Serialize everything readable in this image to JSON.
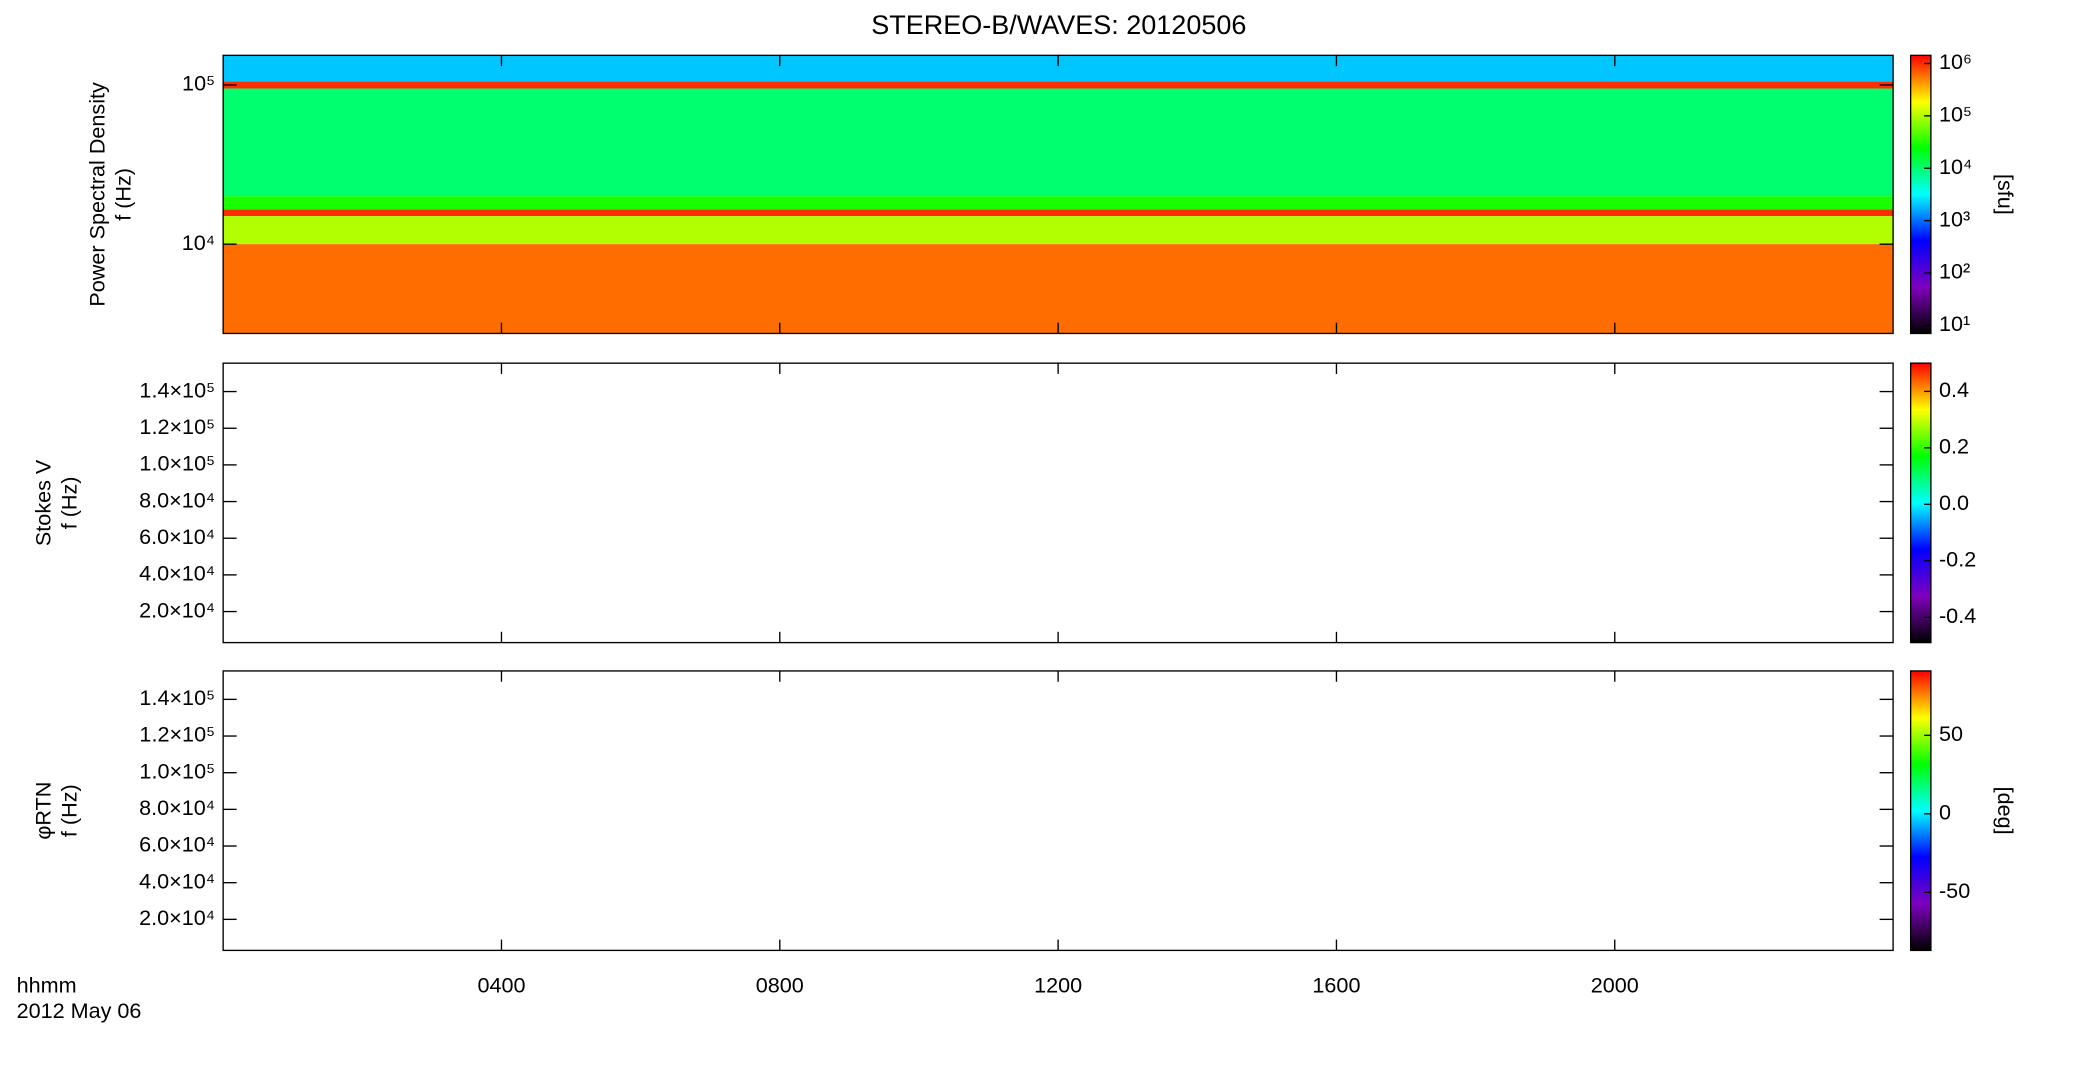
{
  "title": "STEREO-B/WAVES: 20120506",
  "x_axis": {
    "label": "hhmm",
    "date": "2012 May 06",
    "xlim": [
      0,
      24
    ],
    "xticks": [
      {
        "value": 4,
        "label": "0400"
      },
      {
        "value": 8,
        "label": "0800"
      },
      {
        "value": 12,
        "label": "1200"
      },
      {
        "value": 16,
        "label": "1600"
      },
      {
        "value": 20,
        "label": "2000"
      }
    ]
  },
  "colormap": [
    "#000000",
    "#7f00bf",
    "#0000ff",
    "#00ffff",
    "#00ff00",
    "#ffff00",
    "#ff0000"
  ],
  "chart_data": [
    {
      "type": "spectrogram",
      "ylabel": [
        "Power Spectral Density",
        "f (Hz)"
      ],
      "log_y": true,
      "ylim": [
        2750,
        153500
      ],
      "yticks": [
        {
          "value": 10000,
          "label": "10⁴"
        },
        {
          "value": 100000,
          "label": "10⁵"
        }
      ],
      "bands": {
        "f_low": [
          105000,
          95000,
          20000,
          16500,
          15000,
          10000,
          2750
        ],
        "f_high": [
          153500,
          105000,
          95000,
          20000,
          16500,
          15000,
          10000
        ],
        "values": [
          2000,
          1000000,
          10000,
          30000,
          1000000,
          100000,
          600000
        ]
      },
      "colorbar": {
        "label": "[sfu]",
        "log": true,
        "zlim": [
          7,
          1430000
        ],
        "zticks": [
          {
            "value": 10,
            "label": "10¹"
          },
          {
            "value": 100,
            "label": "10²"
          },
          {
            "value": 1000,
            "label": "10³"
          },
          {
            "value": 10000,
            "label": "10⁴"
          },
          {
            "value": 100000,
            "label": "10⁵"
          },
          {
            "value": 1000000,
            "label": "10⁶"
          }
        ]
      }
    },
    {
      "type": "spectrogram",
      "ylabel": [
        "Stokes V",
        "f (Hz)"
      ],
      "log_y": false,
      "ylim": [
        3070,
        155500
      ],
      "yticks": [
        {
          "value": 20000,
          "label": "2.0×10⁴"
        },
        {
          "value": 40000,
          "label": "4.0×10⁴"
        },
        {
          "value": 60000,
          "label": "6.0×10⁴"
        },
        {
          "value": 80000,
          "label": "8.0×10⁴"
        },
        {
          "value": 100000,
          "label": "1.0×10⁵"
        },
        {
          "value": 120000,
          "label": "1.2×10⁵"
        },
        {
          "value": 140000,
          "label": "1.4×10⁵"
        }
      ],
      "colorbar": {
        "log": false,
        "zlim": [
          -0.49,
          0.5
        ],
        "zticks": [
          -0.4,
          -0.2,
          {
            "value": 0,
            "label": "0.0"
          },
          0.2,
          0.4
        ]
      }
    },
    {
      "type": "spectrogram",
      "ylabel": [
        "φRTN",
        "f (Hz)"
      ],
      "log_y": false,
      "ylim": [
        3070,
        155500
      ],
      "yticks": [
        {
          "value": 20000,
          "label": "2.0×10⁴"
        },
        {
          "value": 40000,
          "label": "4.0×10⁴"
        },
        {
          "value": 60000,
          "label": "6.0×10⁴"
        },
        {
          "value": 80000,
          "label": "8.0×10⁴"
        },
        {
          "value": 100000,
          "label": "1.0×10⁵"
        },
        {
          "value": 120000,
          "label": "1.2×10⁵"
        },
        {
          "value": 140000,
          "label": "1.4×10⁵"
        }
      ],
      "colorbar": {
        "label": "[deg]",
        "log": false,
        "zlim": [
          -87,
          91
        ],
        "zticks": [
          -50,
          0,
          50
        ]
      }
    }
  ]
}
